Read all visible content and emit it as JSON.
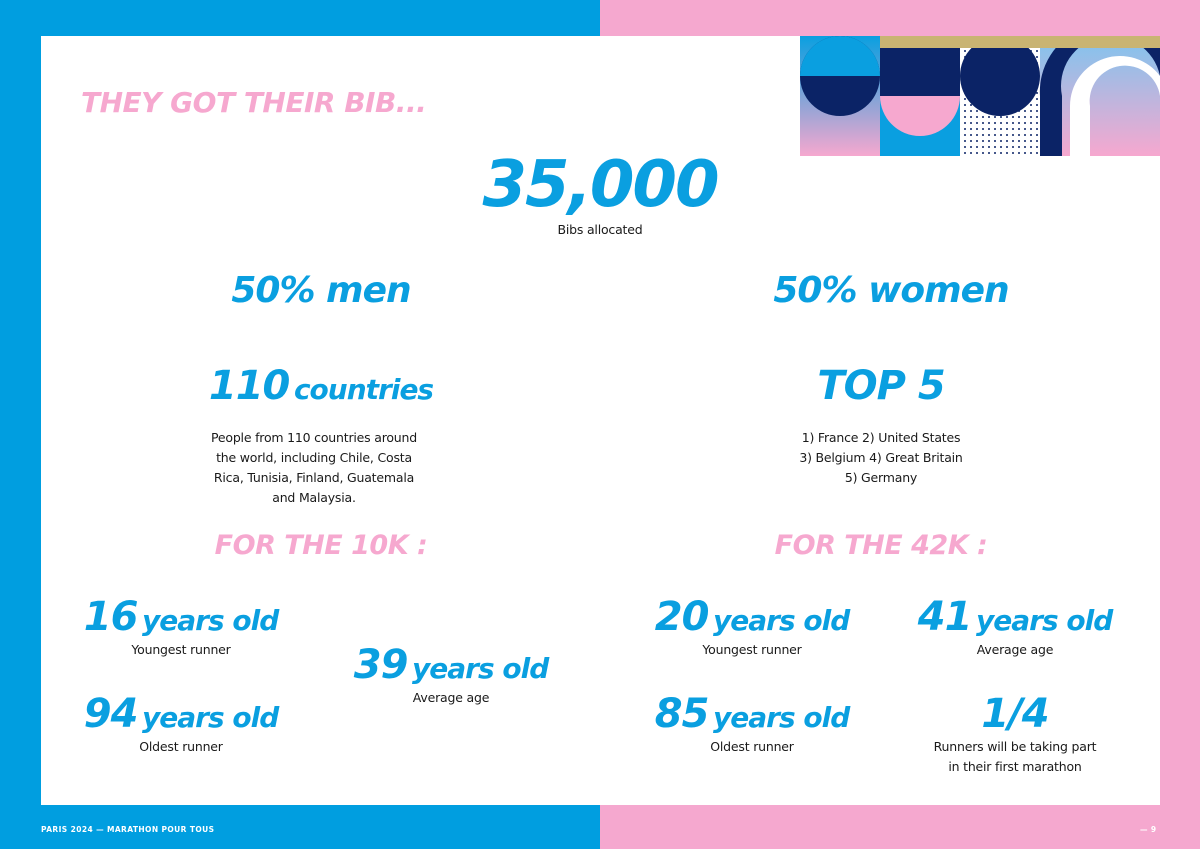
{
  "header": {
    "title": "THEY GOT THEIR BIB..."
  },
  "bibs": {
    "value": "35,000",
    "label": "Bibs allocated"
  },
  "gender": {
    "men": "50% men",
    "women": "50% women"
  },
  "countries": {
    "value": "110",
    "unit": "countries",
    "description": "People from 110 countries around the world, including Chile, Costa Rica, Tunisia, Finland, Guatemala and Malaysia."
  },
  "top5": {
    "title": "TOP 5",
    "lines": [
      "1) France 2) United States",
      "3) Belgium 4) Great Britain",
      "5) Germany"
    ]
  },
  "race10k": {
    "title": "FOR THE 10K :",
    "youngest": {
      "value": "16",
      "unit": "years old",
      "label": "Youngest runner"
    },
    "oldest": {
      "value": "94",
      "unit": "years old",
      "label": "Oldest runner"
    },
    "average": {
      "value": "39",
      "unit": "years old",
      "label": "Average age"
    }
  },
  "race42k": {
    "title": "FOR THE 42K :",
    "youngest": {
      "value": "20",
      "unit": "years old",
      "label": "Youngest runner"
    },
    "average": {
      "value": "41",
      "unit": "years old",
      "label": "Average age"
    },
    "oldest": {
      "value": "85",
      "unit": "years old",
      "label": "Oldest runner"
    },
    "first": {
      "value": "1/4",
      "line1": "Runners will be taking part",
      "line2": "in their first marathon"
    }
  },
  "footer": {
    "left": "PARIS 2024 — MARATHON POUR TOUS",
    "right": "— 9"
  },
  "colors": {
    "blue": "#009ee0",
    "pink": "#f5a8cf",
    "navy": "#0b2366",
    "gold": "#c9b472"
  }
}
